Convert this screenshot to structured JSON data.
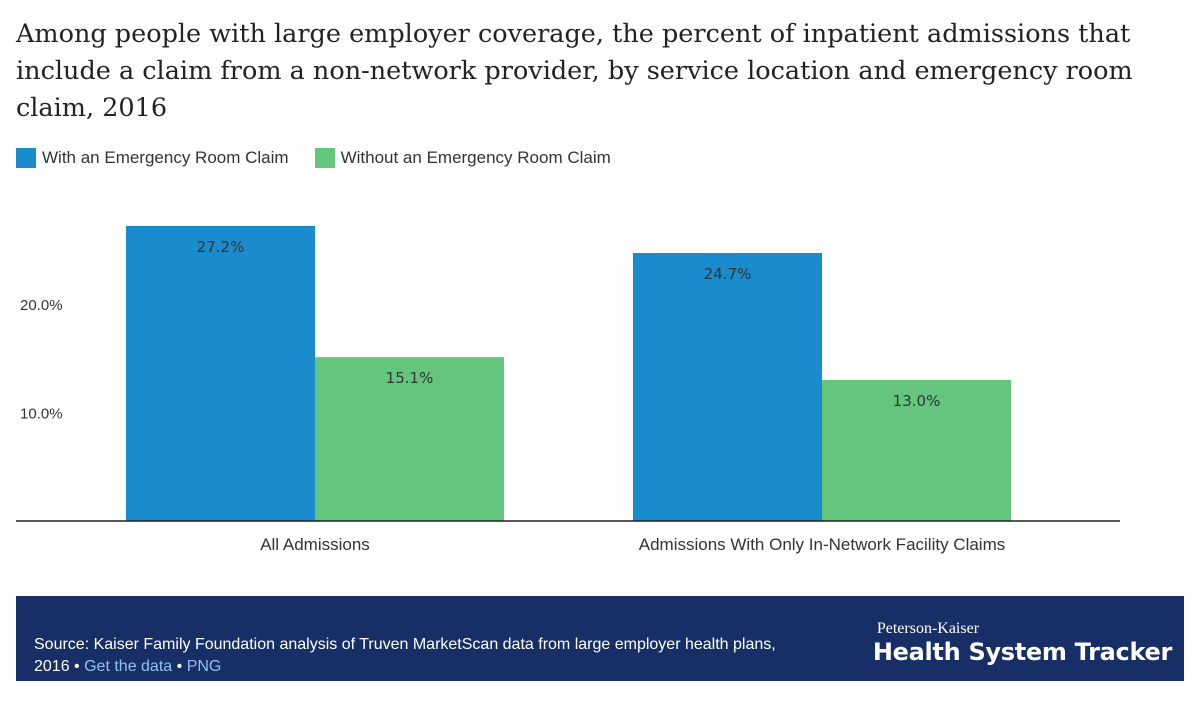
{
  "title": "Among people with large employer coverage, the percent of inpatient admissions that include a claim from a non-network provider, by service location and emergency room claim, 2016",
  "colors": {
    "with_er": "#1a8bcc",
    "without_er": "#63c67c",
    "footer_bg": "#172f66",
    "link": "#8fc1f5"
  },
  "chart_data": {
    "type": "bar",
    "title": "Among people with large employer coverage, the percent of inpatient admissions that include a claim from a non-network provider, by service location and emergency room claim, 2016",
    "categories": [
      "All Admissions",
      "Admissions With Only In-Network Facility Claims"
    ],
    "series": [
      {
        "name": "With an Emergency Room Claim",
        "values": [
          27.2,
          24.7
        ],
        "labels": [
          "27.2%",
          "24.7%"
        ],
        "color": "#1a8bcc"
      },
      {
        "name": "Without an Emergency Room Claim",
        "values": [
          15.1,
          13.0
        ],
        "labels": [
          "15.1%",
          "13.0%"
        ],
        "color": "#63c67c"
      }
    ],
    "ylim": [
      0,
      30
    ],
    "yticks": [
      10,
      20
    ],
    "ytick_labels": [
      "10.0%",
      "20.0%"
    ],
    "grid": false,
    "legend_position": "top-left",
    "xlabel": "",
    "ylabel": ""
  },
  "footer": {
    "source_text": "Source: Kaiser Family Foundation analysis of Truven MarketScan data from large employer health plans, 2016",
    "separator": "•",
    "get_data_link": "Get the data",
    "png_link": "PNG",
    "brand_small": "Peterson-Kaiser",
    "brand_big": "Health System Tracker"
  }
}
